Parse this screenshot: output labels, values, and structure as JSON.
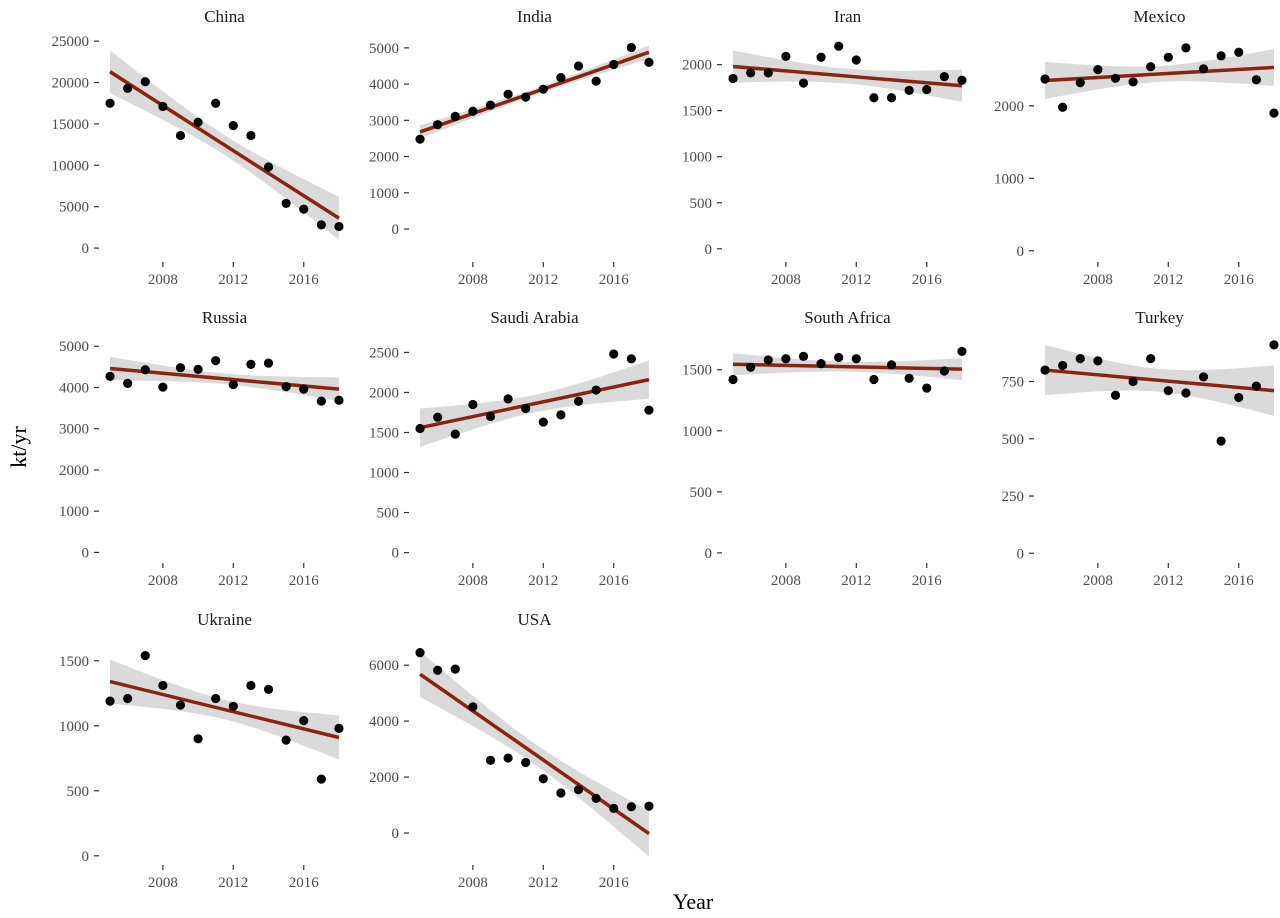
{
  "chart_data": {
    "type": "scatter",
    "layout": "facet-grid",
    "ncol": 4,
    "xlabel": "Year",
    "ylabel": "kt/yr",
    "xlim": [
      2004.6,
      2018.4
    ],
    "xticks": [
      2008,
      2012,
      2016
    ],
    "colors": {
      "points": "#000000",
      "trend": "#8B2312",
      "band": "#d3d3d3"
    },
    "grid": false,
    "years": [
      2005,
      2006,
      2007,
      2008,
      2009,
      2010,
      2011,
      2012,
      2013,
      2014,
      2015,
      2016,
      2017,
      2018
    ],
    "panels": [
      {
        "name": "China",
        "ylim": [
          -1200,
          25500
        ],
        "yticks": [
          0,
          5000,
          10000,
          15000,
          20000,
          25000
        ],
        "values": [
          17500,
          19300,
          20100,
          17100,
          13600,
          15200,
          17500,
          14800,
          13600,
          9800,
          5400,
          4700,
          2800,
          2600
        ],
        "trend": {
          "start": 21300,
          "end": 3600
        },
        "band": {
          "start": 2700,
          "mid": 1200,
          "end": 2500
        }
      },
      {
        "name": "India",
        "ylim": [
          -800,
          5300
        ],
        "yticks": [
          0,
          1000,
          2000,
          3000,
          4000,
          5000
        ],
        "values": [
          2480,
          2880,
          3110,
          3250,
          3420,
          3720,
          3640,
          3860,
          4180,
          4500,
          4080,
          4540,
          5010,
          4600
        ],
        "trend": {
          "start": 2680,
          "end": 4880
        },
        "band": {
          "start": 190,
          "mid": 90,
          "end": 180
        }
      },
      {
        "name": "Iran",
        "ylim": [
          -100,
          2300
        ],
        "yticks": [
          0,
          500,
          1000,
          1500,
          2000
        ],
        "values": [
          1850,
          1910,
          1910,
          2090,
          1800,
          2080,
          2200,
          2050,
          1640,
          1640,
          1720,
          1730,
          1870,
          1830
        ],
        "trend": {
          "start": 1980,
          "end": 1770
        },
        "band": {
          "start": 180,
          "mid": 80,
          "end": 170
        }
      },
      {
        "name": "Mexico",
        "ylim": [
          -100,
          2950
        ],
        "yticks": [
          0,
          1000,
          2000
        ],
        "values": [
          2370,
          1980,
          2320,
          2500,
          2380,
          2330,
          2540,
          2670,
          2800,
          2510,
          2690,
          2740,
          2360,
          1900
        ],
        "trend": {
          "start": 2350,
          "end": 2530
        },
        "band": {
          "start": 260,
          "mid": 110,
          "end": 250
        }
      },
      {
        "name": "Russia",
        "ylim": [
          -160,
          5200
        ],
        "yticks": [
          0,
          1000,
          2000,
          3000,
          4000,
          5000
        ],
        "values": [
          4270,
          4100,
          4430,
          4010,
          4480,
          4440,
          4650,
          4070,
          4560,
          4590,
          4020,
          3960,
          3670,
          3690
        ],
        "trend": {
          "start": 4460,
          "end": 3960
        },
        "band": {
          "start": 290,
          "mid": 130,
          "end": 280
        }
      },
      {
        "name": "Saudi Arabia",
        "ylim": [
          -80,
          2680
        ],
        "yticks": [
          0,
          500,
          1000,
          1500,
          2000,
          2500
        ],
        "values": [
          1550,
          1690,
          1480,
          1850,
          1700,
          1920,
          1800,
          1630,
          1720,
          1890,
          2030,
          2480,
          2420,
          1780
        ],
        "trend": {
          "start": 1560,
          "end": 2160
        },
        "band": {
          "start": 240,
          "mid": 110,
          "end": 240
        }
      },
      {
        "name": "South Africa",
        "ylim": [
          -50,
          1760
        ],
        "yticks": [
          0,
          500,
          1000,
          1500
        ],
        "values": [
          1420,
          1520,
          1580,
          1590,
          1610,
          1550,
          1600,
          1590,
          1420,
          1540,
          1430,
          1350,
          1490,
          1650
        ],
        "trend": {
          "start": 1545,
          "end": 1505
        },
        "band": {
          "start": 90,
          "mid": 40,
          "end": 90
        }
      },
      {
        "name": "Turkey",
        "ylim": [
          -25,
          940
        ],
        "yticks": [
          0,
          250,
          500,
          750
        ],
        "values": [
          800,
          820,
          850,
          840,
          690,
          750,
          850,
          710,
          700,
          770,
          490,
          680,
          730,
          910
        ],
        "trend": {
          "start": 800,
          "end": 710
        },
        "band": {
          "start": 110,
          "mid": 50,
          "end": 110
        }
      },
      {
        "name": "Ukraine",
        "ylim": [
          -40,
          1660
        ],
        "yticks": [
          0,
          500,
          1000,
          1500
        ],
        "values": [
          1190,
          1210,
          1540,
          1310,
          1160,
          900,
          1210,
          1150,
          1310,
          1280,
          890,
          1040,
          590,
          980
        ],
        "trend": {
          "start": 1340,
          "end": 910
        },
        "band": {
          "start": 170,
          "mid": 75,
          "end": 170
        }
      },
      {
        "name": "USA",
        "ylim": [
          -1000,
          6900
        ],
        "yticks": [
          0,
          2000,
          4000,
          6000
        ],
        "values": [
          6450,
          5820,
          5860,
          4510,
          2600,
          2680,
          2520,
          1940,
          1430,
          1550,
          1240,
          880,
          940,
          960
        ],
        "trend": {
          "start": 5680,
          "end": -20
        },
        "band": {
          "start": 820,
          "mid": 370,
          "end": 820
        }
      }
    ]
  }
}
